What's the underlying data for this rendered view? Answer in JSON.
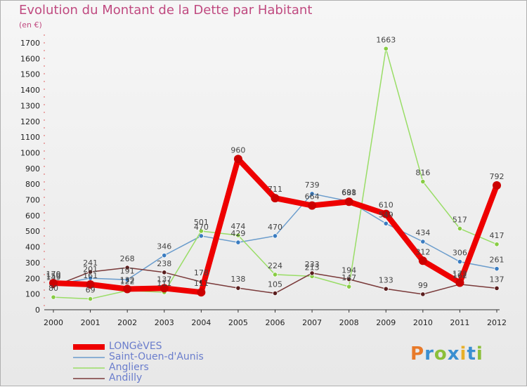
{
  "title": "Evolution du Montant de la Dette par Habitant",
  "subtitle": "(en €)",
  "logo": "Proxiti",
  "logo_colors": [
    "#e87a2a",
    "#3a8fd1",
    "#8bbf3a",
    "#3a8fd1",
    "#e8b02a",
    "#3a8fd1",
    "#8bbf3a"
  ],
  "chart_data": {
    "type": "line",
    "title": "Evolution du Montant de la Dette par Habitant",
    "subtitle": "(en €)",
    "x": [
      "2000",
      "2001",
      "2002",
      "2003",
      "2004",
      "2005",
      "2006",
      "2007",
      "2008",
      "2009",
      "2010",
      "2011",
      "2012"
    ],
    "y_ticks": [
      0,
      100,
      200,
      300,
      400,
      500,
      600,
      700,
      800,
      900,
      1000,
      1100,
      1200,
      1300,
      1400,
      1500,
      1600,
      1700
    ],
    "ylim": [
      0,
      1700
    ],
    "grid": false,
    "legend_position": "bottom-left",
    "series": [
      {
        "name": "Saint-Ouen-d'Aunis",
        "color": "#6a9ccc",
        "marker": "#3a7cc0",
        "values": [
          159,
          201,
          191,
          346,
          470,
          429,
          470,
          739,
          691,
          549,
          434,
          306,
          261
        ],
        "labels": [
          "159",
          "201",
          "191",
          "346",
          "470",
          "429",
          "470",
          "739",
          "691",
          "549",
          "434",
          "306",
          "261"
        ]
      },
      {
        "name": "Angliers",
        "color": "#99dd66",
        "marker": "#88cc44",
        "values": [
          80,
          69,
          122,
          111,
          501,
          474,
          224,
          213,
          147,
          1663,
          816,
          517,
          417
        ],
        "labels": [
          "80",
          "69",
          "122",
          "111",
          "501",
          "474",
          "224",
          "213",
          "147",
          "1663",
          "816",
          "517",
          "417"
        ]
      },
      {
        "name": "Andilly",
        "color": "#7a3a3a",
        "marker": "#5a1e1e",
        "values": [
          149,
          241,
          268,
          238,
          178,
          138,
          105,
          233,
          194,
          133,
          99,
          162,
          137
        ],
        "labels": [
          "149",
          "241",
          "268",
          "238",
          "178",
          "138",
          "105",
          "233",
          "194",
          "133",
          "99",
          "162",
          "137"
        ]
      },
      {
        "name": "LONGèVES",
        "color": "#ee0000",
        "marker": "#cc0000",
        "values": [
          170,
          161,
          132,
          137,
          111,
          960,
          711,
          664,
          688,
          610,
          312,
          172,
          792
        ],
        "labels": [
          "170",
          "161",
          "132",
          "137",
          "111",
          "960",
          "711",
          "664",
          "688",
          "610",
          "312",
          "172",
          "792"
        ]
      }
    ],
    "legend": [
      "LONGèVES",
      "Saint-Ouen-d'Aunis",
      "Angliers",
      "Andilly"
    ]
  }
}
